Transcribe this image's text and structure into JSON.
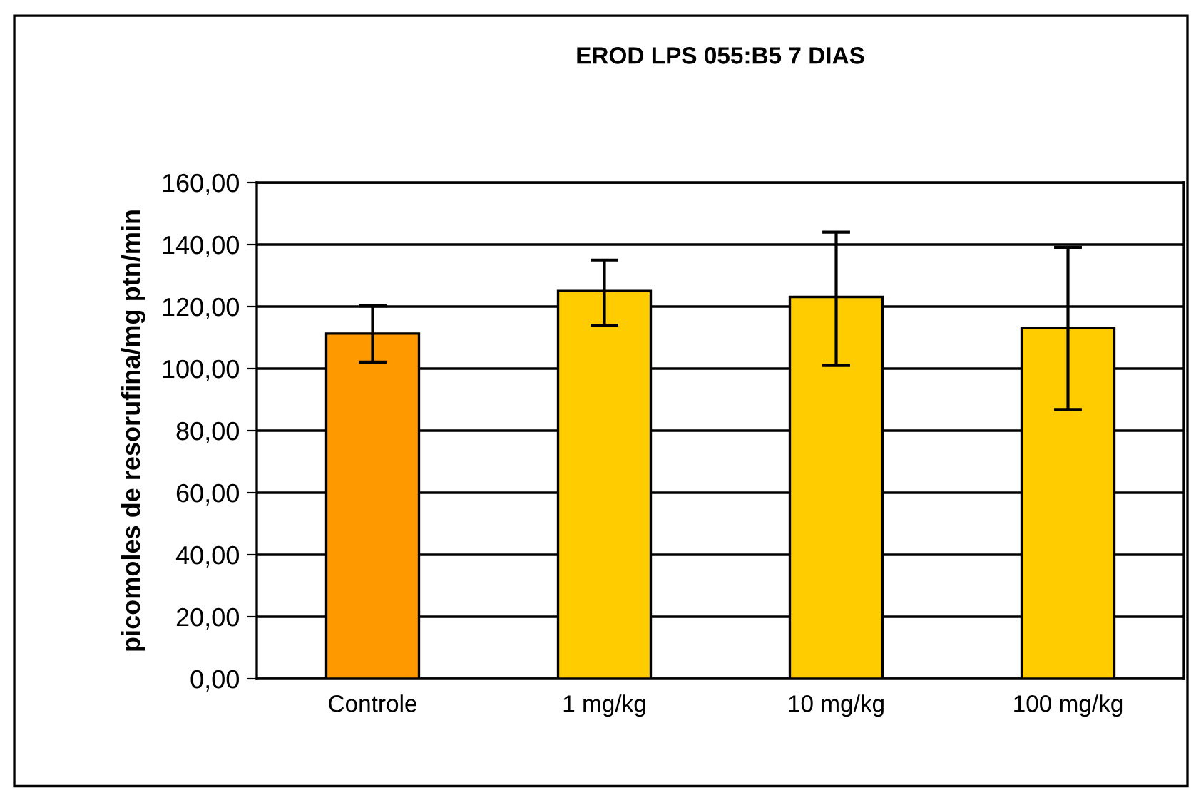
{
  "chart_data": {
    "type": "bar",
    "title": "EROD LPS 055:B5 7 DIAS",
    "ylabel": "picomoles de resorufina/mg ptn/min",
    "categories": [
      "Controle",
      "1 mg/kg",
      "10 mg/kg",
      "100 mg/kg"
    ],
    "values": [
      111.3,
      125,
      123.1,
      113.2
    ],
    "colors": [
      "#ff9900",
      "#ffcc00",
      "#ffcc00",
      "#ffcc00"
    ],
    "errors": [
      [
        102.1,
        120.2
      ],
      [
        114,
        135
      ],
      [
        101,
        144
      ],
      [
        86.8,
        139.1
      ]
    ],
    "ylim": [
      0,
      160
    ],
    "yticks": [
      {
        "value": 0,
        "label": "0,00"
      },
      {
        "value": 20,
        "label": "20,00"
      },
      {
        "value": 40,
        "label": "40,00"
      },
      {
        "value": 60,
        "label": "60,00"
      },
      {
        "value": 80,
        "label": "80,00"
      },
      {
        "value": 100,
        "label": "100,00"
      },
      {
        "value": 120,
        "label": "120,00"
      },
      {
        "value": 140,
        "label": "140,00"
      },
      {
        "value": 160,
        "label": "160,00"
      }
    ],
    "grid": "y"
  }
}
